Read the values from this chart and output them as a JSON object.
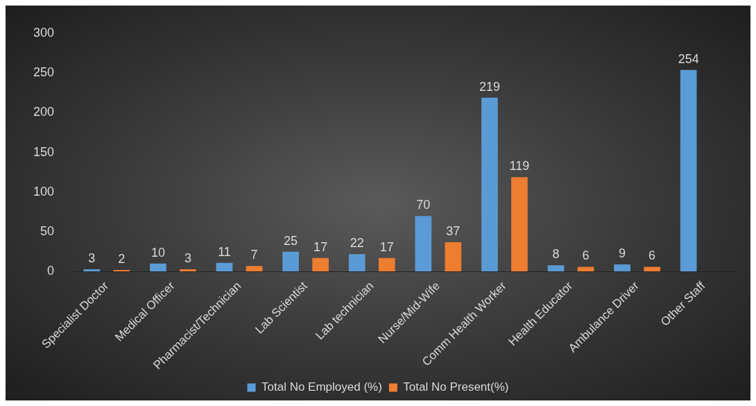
{
  "chart_data": {
    "type": "bar",
    "categories": [
      "Specialist Doctor",
      "Medical Officer",
      "Pharmacist/Technician",
      "Lab Scientist",
      "Lab technician",
      "Nurse/Mid-Wife",
      "Comm Health Worker",
      "Health Educator",
      "Ambulance Driver",
      "Other Staff"
    ],
    "series": [
      {
        "name": "Total No Employed (%)",
        "color": "#5b9bd5",
        "values": [
          3,
          10,
          11,
          25,
          22,
          70,
          219,
          8,
          9,
          254
        ]
      },
      {
        "name": "Total No Present(%)",
        "color": "#ed7d31",
        "values": [
          2,
          3,
          7,
          17,
          17,
          37,
          119,
          6,
          6,
          null
        ]
      }
    ],
    "ylim": [
      0,
      300
    ],
    "yticks": [
      0,
      50,
      100,
      150,
      200,
      250,
      300
    ],
    "grid": false,
    "legend": "bottom",
    "data_labels": true
  }
}
